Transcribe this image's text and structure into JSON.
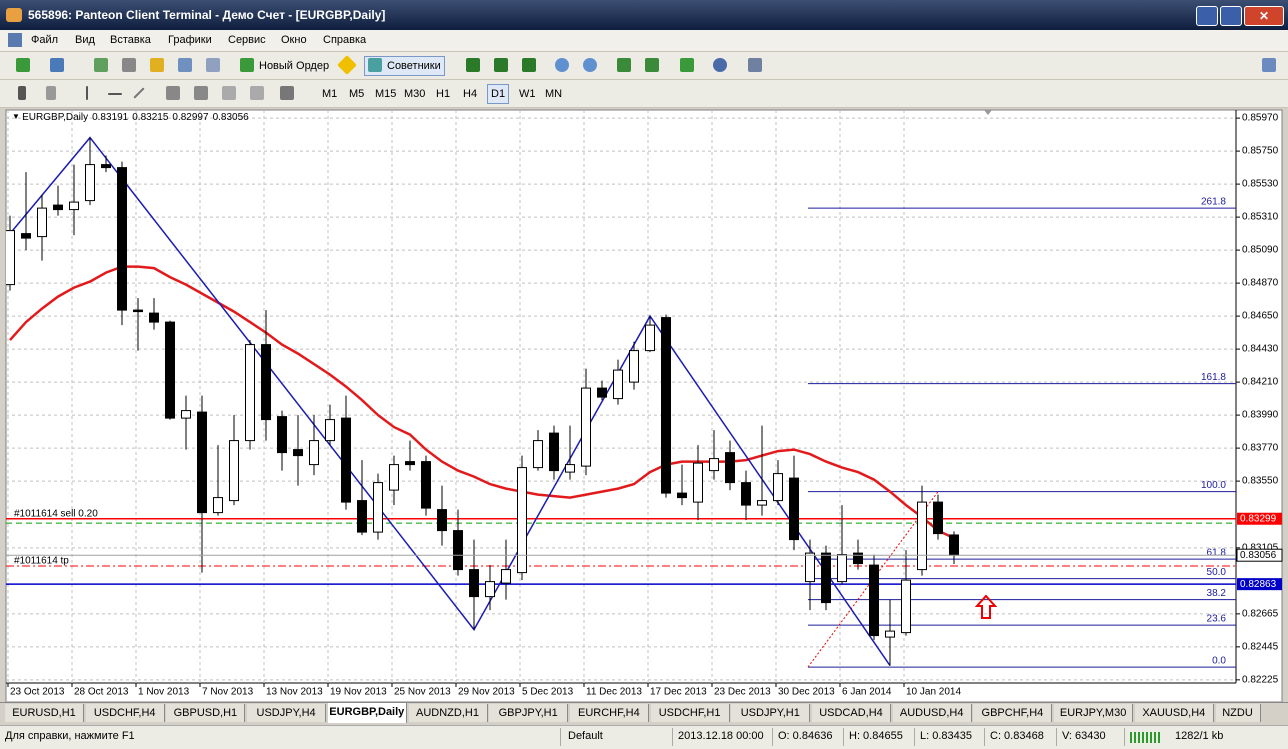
{
  "window": {
    "title": "565896: Panteon Client Terminal - Демо Счет - [EURGBP,Daily]",
    "menu": [
      "Файл",
      "Вид",
      "Вставка",
      "Графики",
      "Сервис",
      "Окно",
      "Справка"
    ],
    "toolbar": {
      "new_order": "Новый Ордер",
      "experts": "Советники",
      "timeframes": [
        "M1",
        "M5",
        "M15",
        "M30",
        "H1",
        "H4",
        "D1",
        "W1",
        "MN"
      ]
    },
    "tabs": [
      "EURUSD,H1",
      "USDCHF,H4",
      "GBPUSD,H1",
      "USDJPY,H4",
      "EURGBP,Daily",
      "AUDNZD,H1",
      "GBPJPY,H1",
      "EURCHF,H4",
      "USDCHF,H1",
      "USDJPY,H1",
      "USDCAD,H4",
      "AUDUSD,H4",
      "GBPCHF,H4",
      "EURJPY,M30",
      "XAUUSD,H4",
      "NZDU"
    ],
    "status": {
      "help": "Для справки, нажмите F1",
      "profile": "Default",
      "time": "2013.12.18 00:00",
      "open": "O: 0.84636",
      "high": "H: 0.84655",
      "low": "L: 0.83435",
      "close": "C: 0.83468",
      "volume": "V: 63430",
      "traffic": "1282/1 kb"
    }
  },
  "chart_data": {
    "type": "candlestick",
    "symbol": "EURGBP,Daily",
    "up_color": "#ffffff",
    "down_color": "#000000",
    "grid": true,
    "categories": [
      "23 Oct 2013",
      null,
      null,
      null,
      "28 Oct 2013",
      null,
      null,
      null,
      "1 Nov 2013",
      null,
      null,
      null,
      "7 Nov 2013",
      null,
      null,
      null,
      "13 Nov 2013",
      null,
      null,
      null,
      "19 Nov 2013",
      null,
      null,
      null,
      "25 Nov 2013",
      null,
      null,
      null,
      "29 Nov 2013",
      null,
      null,
      null,
      "5 Dec 2013",
      null,
      null,
      null,
      "11 Dec 2013",
      null,
      null,
      null,
      "17 Dec 2013",
      null,
      null,
      null,
      "23 Dec 2013",
      null,
      null,
      null,
      "30 Dec 2013",
      null,
      null,
      null,
      "6 Jan 2014",
      null,
      null,
      null,
      "10 Jan 2014",
      null,
      null,
      null
    ],
    "open": [
      0.8486,
      0.852,
      0.8518,
      0.8539,
      0.8536,
      0.8542,
      0.8566,
      0.8564,
      0.8469,
      0.8467,
      0.8461,
      0.8397,
      0.8401,
      0.8334,
      0.8342,
      0.8382,
      0.8446,
      0.8398,
      0.8376,
      0.8366,
      0.8382,
      0.8397,
      0.8342,
      0.8321,
      0.8349,
      0.8368,
      0.8368,
      0.8336,
      0.8322,
      0.8296,
      0.8278,
      0.8287,
      0.8294,
      0.8364,
      0.8387,
      0.8361,
      0.8365,
      0.8417,
      0.841,
      0.8421,
      0.8442,
      0.8464,
      0.8347,
      0.8341,
      0.8362,
      0.8374,
      0.8354,
      0.8339,
      0.8342,
      0.8357,
      0.8288,
      0.8307,
      0.8288,
      0.8307,
      0.8299,
      0.8251,
      0.8254,
      0.8296,
      0.8341,
      0.83191
    ],
    "high": [
      0.8532,
      0.8561,
      0.8546,
      0.8552,
      0.8566,
      0.8584,
      0.8572,
      0.8568,
      0.8477,
      0.8477,
      0.8462,
      0.8412,
      0.8412,
      0.8379,
      0.8399,
      0.8449,
      0.8469,
      0.8402,
      0.8399,
      0.8399,
      0.8406,
      0.8412,
      0.8369,
      0.836,
      0.8372,
      0.8382,
      0.8372,
      0.8352,
      0.8336,
      0.8316,
      0.8299,
      0.8316,
      0.8372,
      0.8389,
      0.8392,
      0.8392,
      0.843,
      0.8422,
      0.8436,
      0.8448,
      0.8465,
      0.8466,
      0.8366,
      0.8379,
      0.8389,
      0.8382,
      0.8362,
      0.8392,
      0.8369,
      0.8372,
      0.8316,
      0.8312,
      0.8339,
      0.8316,
      0.8306,
      0.8276,
      0.8309,
      0.8352,
      0.8346,
      0.83215
    ],
    "low": [
      0.8482,
      0.8509,
      0.8502,
      0.8532,
      0.8519,
      0.8539,
      0.8561,
      0.8459,
      0.8442,
      0.8456,
      0.8396,
      0.8376,
      0.8294,
      0.8332,
      0.8339,
      0.8376,
      0.8382,
      0.8362,
      0.8352,
      0.8359,
      0.8379,
      0.8336,
      0.8319,
      0.8316,
      0.8339,
      0.8362,
      0.8332,
      0.8312,
      0.8292,
      0.8256,
      0.8269,
      0.8276,
      0.8289,
      0.8362,
      0.8356,
      0.8356,
      0.8359,
      0.8409,
      0.8406,
      0.8416,
      0.8441,
      0.8344,
      0.8339,
      0.8329,
      0.8356,
      0.8349,
      0.8329,
      0.8332,
      0.8339,
      0.8309,
      0.8269,
      0.8269,
      0.8286,
      0.8296,
      0.8249,
      0.8232,
      0.8252,
      0.8292,
      0.8316,
      0.82997
    ],
    "close": [
      0.8522,
      0.8517,
      0.8537,
      0.8536,
      0.8541,
      0.8566,
      0.8564,
      0.8469,
      0.8468,
      0.8461,
      0.8397,
      0.8402,
      0.8334,
      0.8344,
      0.8382,
      0.8446,
      0.8396,
      0.8374,
      0.8372,
      0.8382,
      0.8396,
      0.8341,
      0.8321,
      0.8354,
      0.8366,
      0.8366,
      0.8337,
      0.8322,
      0.8296,
      0.8278,
      0.8288,
      0.8296,
      0.8364,
      0.8382,
      0.8362,
      0.8366,
      0.8417,
      0.8411,
      0.8429,
      0.8442,
      0.8459,
      0.8347,
      0.8344,
      0.8367,
      0.837,
      0.8354,
      0.8339,
      0.8342,
      0.836,
      0.8316,
      0.8307,
      0.8274,
      0.8306,
      0.83,
      0.8252,
      0.8255,
      0.8289,
      0.8341,
      0.832,
      0.83056
    ],
    "ma": {
      "color": "#e31a1c",
      "values": [
        0.8449,
        0.8461,
        0.847,
        0.8478,
        0.8484,
        0.8488,
        0.8494,
        0.8498,
        0.8498,
        0.8497,
        0.8491,
        0.8486,
        0.848,
        0.8474,
        0.8468,
        0.8461,
        0.8454,
        0.8446,
        0.844,
        0.8433,
        0.8426,
        0.8418,
        0.8409,
        0.8399,
        0.8391,
        0.8386,
        0.8376,
        0.8368,
        0.8362,
        0.8358,
        0.8353,
        0.835,
        0.8348,
        0.8346,
        0.8345,
        0.8344,
        0.8346,
        0.8348,
        0.835,
        0.8353,
        0.8361,
        0.8366,
        0.8368,
        0.8368,
        0.8368,
        0.8368,
        0.8369,
        0.8372,
        0.8375,
        0.8376,
        0.8373,
        0.8368,
        0.8364,
        0.8361,
        0.8356,
        0.8348,
        0.8339,
        0.8331,
        0.8322,
        0.8317
      ]
    },
    "zigzag": {
      "color": "#1c1cb4",
      "x": [
        0,
        5,
        29,
        40,
        55
      ],
      "values": [
        0.852,
        0.8584,
        0.8256,
        0.8465,
        0.8232
      ]
    },
    "fibonacci": {
      "color": "#1c1c9c",
      "levels": [
        261.8,
        161.8,
        {
          "value": 100,
          "label": "100.0"
        },
        61.8,
        {
          "value": 50,
          "label": "50.0"
        },
        38.2,
        23.6,
        {
          "value": 0,
          "label": "0.0"
        }
      ],
      "prices": [
        0.8537,
        0.842,
        0.8348,
        0.8303,
        0.829,
        0.8276,
        0.8259,
        0.8231
      ]
    },
    "lines": [
      {
        "label": "#1011614 sell 0.20",
        "price": 0.83299,
        "color": "#ff0000",
        "price_box": true
      },
      {
        "price": 0.8327,
        "color": "#00a000",
        "dash": "6,4"
      },
      {
        "label": "#1011614 tp",
        "price": 0.82984,
        "color": "#ff0000",
        "dash": "8,3,2,3"
      },
      {
        "price": 0.82863,
        "color": "#0000c8",
        "price_box": true
      }
    ],
    "ylim": [
      0.82204,
      0.86024
    ],
    "yticks": [
      {
        "value": 0.8597,
        "label": "0.85970"
      },
      {
        "value": 0.8575,
        "label": "0.85750"
      },
      {
        "value": 0.8553,
        "label": "0.85530"
      },
      {
        "value": 0.8531,
        "label": "0.85310"
      },
      {
        "value": 0.8509,
        "label": "0.85090"
      },
      {
        "value": 0.8487,
        "label": "0.84870"
      },
      {
        "value": 0.8465,
        "label": "0.84650"
      },
      {
        "value": 0.8443,
        "label": "0.84430"
      },
      {
        "value": 0.8421,
        "label": "0.84210"
      },
      {
        "value": 0.8399,
        "label": "0.83990"
      },
      {
        "value": 0.8377,
        "label": "0.83770"
      },
      {
        "value": 0.8355,
        "label": "0.83550"
      },
      0.83105,
      {
        "value": 0.82665,
        "label": "0.82665"
      },
      {
        "value": 0.82445,
        "label": "0.82445"
      },
      {
        "value": 0.82225,
        "label": "0.82225"
      }
    ]
  }
}
